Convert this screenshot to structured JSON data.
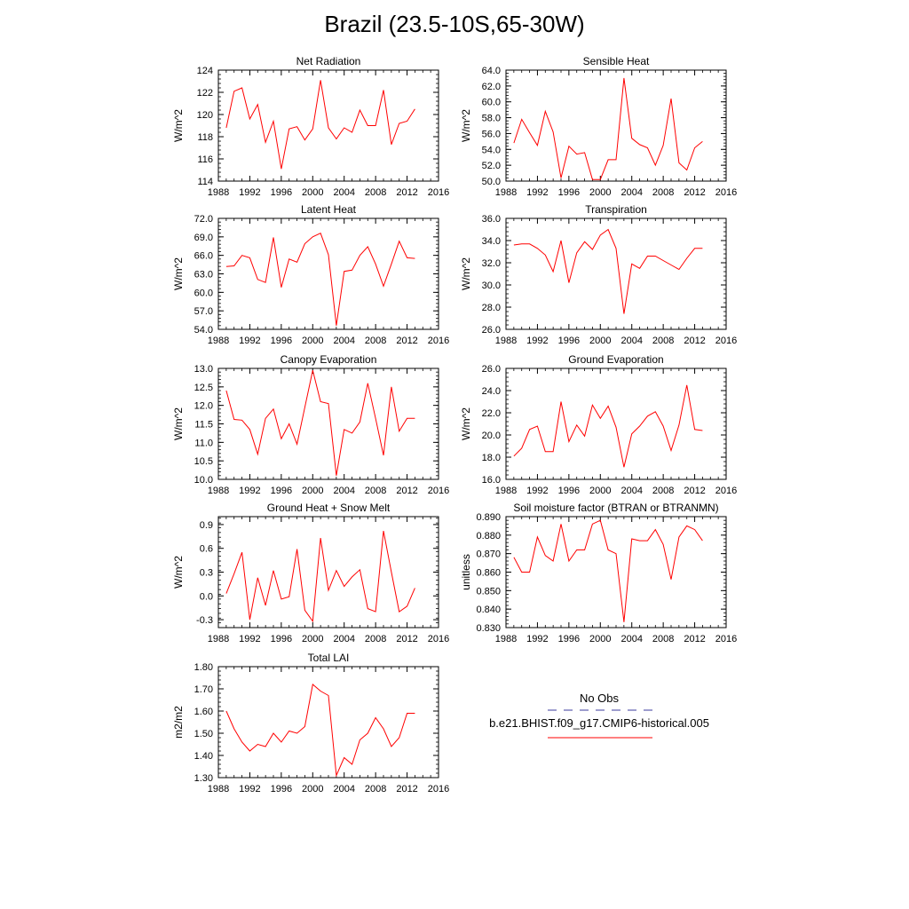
{
  "page_title": "Brazil (23.5-10S,65-30W)",
  "legend": {
    "obs_label": "No Obs",
    "obs_color": "#3b3b9e",
    "model_label": "b.e21.BHIST.f09_g17.CMIP6-historical.005",
    "model_color": "#ff0000"
  },
  "chart_data": [
    {
      "type": "line",
      "title": "Net Radiation",
      "ylabel": "W/m^2",
      "xlim": [
        1988,
        2016
      ],
      "ylim": [
        114,
        124
      ],
      "xticks": [
        1988,
        1992,
        1996,
        2000,
        2004,
        2008,
        2012,
        2016
      ],
      "yticks": [
        114,
        116,
        118,
        120,
        122,
        124
      ],
      "ytick_decimals": 0,
      "x": [
        1989,
        1990,
        1991,
        1992,
        1993,
        1994,
        1995,
        1996,
        1997,
        1998,
        1999,
        2000,
        2001,
        2002,
        2003,
        2004,
        2005,
        2006,
        2007,
        2008,
        2009,
        2010,
        2011,
        2012,
        2013
      ],
      "series": [
        {
          "values": [
            118.8,
            122.1,
            122.4,
            119.6,
            120.9,
            117.5,
            119.4,
            115.1,
            118.7,
            118.9,
            117.7,
            118.7,
            123.1,
            118.8,
            117.8,
            118.8,
            118.4,
            120.4,
            119.0,
            119.0,
            122.2,
            117.3,
            119.2,
            119.4,
            120.5
          ]
        }
      ]
    },
    {
      "type": "line",
      "title": "Sensible Heat",
      "ylabel": "W/m^2",
      "xlim": [
        1988,
        2016
      ],
      "ylim": [
        50,
        64
      ],
      "xticks": [
        1988,
        1992,
        1996,
        2000,
        2004,
        2008,
        2012,
        2016
      ],
      "yticks": [
        50,
        52,
        54,
        56,
        58,
        60,
        62,
        64
      ],
      "ytick_decimals": 1,
      "x": [
        1989,
        1990,
        1991,
        1992,
        1993,
        1994,
        1995,
        1996,
        1997,
        1998,
        1999,
        2000,
        2001,
        2002,
        2003,
        2004,
        2005,
        2006,
        2007,
        2008,
        2009,
        2010,
        2011,
        2012,
        2013
      ],
      "series": [
        {
          "values": [
            54.8,
            57.8,
            56.1,
            54.5,
            58.8,
            56.2,
            50.4,
            54.4,
            53.4,
            53.6,
            50.2,
            50.2,
            52.7,
            52.7,
            63.0,
            55.4,
            54.6,
            54.2,
            52.0,
            54.5,
            60.4,
            52.3,
            51.4,
            54.2,
            55.0
          ]
        }
      ]
    },
    {
      "type": "line",
      "title": "Latent Heat",
      "ylabel": "W/m^2",
      "xlim": [
        1988,
        2016
      ],
      "ylim": [
        54,
        72
      ],
      "xticks": [
        1988,
        1992,
        1996,
        2000,
        2004,
        2008,
        2012,
        2016
      ],
      "yticks": [
        54,
        57,
        60,
        63,
        66,
        69,
        72
      ],
      "ytick_decimals": 1,
      "x": [
        1989,
        1990,
        1991,
        1992,
        1993,
        1994,
        1995,
        1996,
        1997,
        1998,
        1999,
        2000,
        2001,
        2002,
        2003,
        2004,
        2005,
        2006,
        2007,
        2008,
        2009,
        2010,
        2011,
        2012,
        2013
      ],
      "series": [
        {
          "values": [
            64.2,
            64.3,
            66.0,
            65.6,
            62.1,
            61.6,
            68.9,
            60.8,
            65.4,
            64.9,
            67.9,
            69.0,
            69.6,
            66.1,
            54.6,
            63.4,
            63.6,
            66.0,
            67.4,
            64.6,
            61.0,
            64.6,
            68.3,
            65.6,
            65.5
          ]
        }
      ]
    },
    {
      "type": "line",
      "title": "Transpiration",
      "ylabel": "W/m^2",
      "xlim": [
        1988,
        2016
      ],
      "ylim": [
        26,
        36
      ],
      "xticks": [
        1988,
        1992,
        1996,
        2000,
        2004,
        2008,
        2012,
        2016
      ],
      "yticks": [
        26,
        28,
        30,
        32,
        34,
        36
      ],
      "ytick_decimals": 1,
      "x": [
        1989,
        1990,
        1991,
        1992,
        1993,
        1994,
        1995,
        1996,
        1997,
        1998,
        1999,
        2000,
        2001,
        2002,
        2003,
        2004,
        2005,
        2006,
        2007,
        2008,
        2009,
        2010,
        2011,
        2012,
        2013
      ],
      "series": [
        {
          "values": [
            33.6,
            33.7,
            33.7,
            33.3,
            32.7,
            31.2,
            34.0,
            30.2,
            32.9,
            33.9,
            33.2,
            34.5,
            35.0,
            33.3,
            27.4,
            31.9,
            31.5,
            32.6,
            32.6,
            32.2,
            31.8,
            31.4,
            32.4,
            33.3,
            33.3
          ]
        }
      ]
    },
    {
      "type": "line",
      "title": "Canopy Evaporation",
      "ylabel": "W/m^2",
      "xlim": [
        1988,
        2016
      ],
      "ylim": [
        10,
        13
      ],
      "xticks": [
        1988,
        1992,
        1996,
        2000,
        2004,
        2008,
        2012,
        2016
      ],
      "yticks": [
        10,
        10.5,
        11,
        11.5,
        12,
        12.5,
        13
      ],
      "ytick_decimals": 1,
      "x": [
        1989,
        1990,
        1991,
        1992,
        1993,
        1994,
        1995,
        1996,
        1997,
        1998,
        1999,
        2000,
        2001,
        2002,
        2003,
        2004,
        2005,
        2006,
        2007,
        2008,
        2009,
        2010,
        2011,
        2012,
        2013
      ],
      "series": [
        {
          "values": [
            12.4,
            11.62,
            11.6,
            11.35,
            10.68,
            11.65,
            11.9,
            11.1,
            11.5,
            10.95,
            11.95,
            12.95,
            12.1,
            12.05,
            10.1,
            11.35,
            11.25,
            11.55,
            12.6,
            11.65,
            10.65,
            12.5,
            11.3,
            11.65,
            11.65
          ]
        }
      ]
    },
    {
      "type": "line",
      "title": "Ground Evaporation",
      "ylabel": "W/m^2",
      "xlim": [
        1988,
        2016
      ],
      "ylim": [
        16,
        26
      ],
      "xticks": [
        1988,
        1992,
        1996,
        2000,
        2004,
        2008,
        2012,
        2016
      ],
      "yticks": [
        16,
        18,
        20,
        22,
        24,
        26
      ],
      "ytick_decimals": 1,
      "x": [
        1989,
        1990,
        1991,
        1992,
        1993,
        1994,
        1995,
        1996,
        1997,
        1998,
        1999,
        2000,
        2001,
        2002,
        2003,
        2004,
        2005,
        2006,
        2007,
        2008,
        2009,
        2010,
        2011,
        2012,
        2013
      ],
      "series": [
        {
          "values": [
            18.1,
            18.8,
            20.5,
            20.8,
            18.5,
            18.5,
            23.0,
            19.4,
            20.9,
            19.9,
            22.7,
            21.5,
            22.6,
            20.7,
            17.1,
            20.1,
            20.8,
            21.7,
            22.1,
            20.8,
            18.6,
            20.9,
            24.5,
            20.5,
            20.4
          ]
        }
      ]
    },
    {
      "type": "line",
      "title": "Ground Heat + Snow Melt",
      "ylabel": "W/m^2",
      "xlim": [
        1988,
        2016
      ],
      "ylim": [
        -0.4,
        1.0
      ],
      "xticks": [
        1988,
        1992,
        1996,
        2000,
        2004,
        2008,
        2012,
        2016
      ],
      "yticks": [
        -0.3,
        0.0,
        0.3,
        0.6,
        0.9
      ],
      "ytick_decimals": 1,
      "x": [
        1989,
        1990,
        1991,
        1992,
        1993,
        1994,
        1995,
        1996,
        1997,
        1998,
        1999,
        2000,
        2001,
        2002,
        2003,
        2004,
        2005,
        2006,
        2007,
        2008,
        2009,
        2010,
        2011,
        2012,
        2013
      ],
      "series": [
        {
          "values": [
            0.03,
            0.28,
            0.55,
            -0.3,
            0.23,
            -0.12,
            0.32,
            -0.04,
            -0.01,
            0.59,
            -0.18,
            -0.32,
            0.73,
            0.07,
            0.32,
            0.12,
            0.24,
            0.33,
            -0.16,
            -0.2,
            0.82,
            0.3,
            -0.2,
            -0.13,
            0.1
          ]
        }
      ]
    },
    {
      "type": "line",
      "title": "Soil moisture factor (BTRAN or BTRANMN)",
      "ylabel": "unitless",
      "xlim": [
        1988,
        2016
      ],
      "ylim": [
        0.83,
        0.89
      ],
      "xticks": [
        1988,
        1992,
        1996,
        2000,
        2004,
        2008,
        2012,
        2016
      ],
      "yticks": [
        0.83,
        0.84,
        0.85,
        0.86,
        0.87,
        0.88,
        0.89
      ],
      "ytick_decimals": 3,
      "x": [
        1989,
        1990,
        1991,
        1992,
        1993,
        1994,
        1995,
        1996,
        1997,
        1998,
        1999,
        2000,
        2001,
        2002,
        2003,
        2004,
        2005,
        2006,
        2007,
        2008,
        2009,
        2010,
        2011,
        2012,
        2013
      ],
      "series": [
        {
          "values": [
            0.868,
            0.86,
            0.86,
            0.879,
            0.869,
            0.866,
            0.886,
            0.866,
            0.872,
            0.872,
            0.886,
            0.888,
            0.872,
            0.87,
            0.833,
            0.878,
            0.877,
            0.877,
            0.883,
            0.875,
            0.856,
            0.879,
            0.885,
            0.883,
            0.877
          ]
        }
      ]
    },
    {
      "type": "line",
      "title": "Total LAI",
      "ylabel": "m2/m2",
      "xlim": [
        1988,
        2016
      ],
      "ylim": [
        1.3,
        1.8
      ],
      "xticks": [
        1988,
        1992,
        1996,
        2000,
        2004,
        2008,
        2012,
        2016
      ],
      "yticks": [
        1.3,
        1.4,
        1.5,
        1.6,
        1.7,
        1.8
      ],
      "ytick_decimals": 2,
      "x": [
        1989,
        1990,
        1991,
        1992,
        1993,
        1994,
        1995,
        1996,
        1997,
        1998,
        1999,
        2000,
        2001,
        2002,
        2003,
        2004,
        2005,
        2006,
        2007,
        2008,
        2009,
        2010,
        2011,
        2012,
        2013
      ],
      "series": [
        {
          "values": [
            1.6,
            1.52,
            1.46,
            1.42,
            1.45,
            1.44,
            1.5,
            1.46,
            1.51,
            1.5,
            1.53,
            1.72,
            1.69,
            1.67,
            1.31,
            1.39,
            1.36,
            1.47,
            1.5,
            1.57,
            1.52,
            1.44,
            1.48,
            1.59,
            1.59
          ]
        }
      ]
    }
  ]
}
